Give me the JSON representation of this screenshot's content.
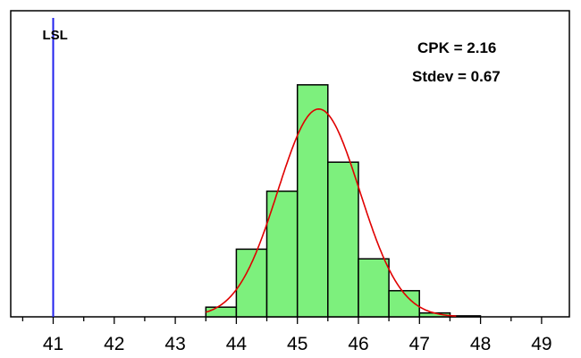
{
  "chart_data": {
    "type": "bar",
    "subtype": "histogram",
    "title": "",
    "xlabel": "",
    "ylabel": "",
    "xlim": [
      40.3,
      49.6
    ],
    "ylim": [
      0,
      30
    ],
    "x_ticks": [
      41,
      42,
      43,
      44,
      45,
      46,
      47,
      48,
      49
    ],
    "y_ticks_shown": false,
    "grid": false,
    "bin_width": 0.5,
    "bins": [
      {
        "start": 43.5,
        "end": 44.0,
        "count": 1
      },
      {
        "start": 44.0,
        "end": 44.5,
        "count": 7
      },
      {
        "start": 44.5,
        "end": 45.0,
        "count": 13
      },
      {
        "start": 45.0,
        "end": 45.5,
        "count": 24
      },
      {
        "start": 45.5,
        "end": 46.0,
        "count": 16
      },
      {
        "start": 46.0,
        "end": 46.5,
        "count": 6
      },
      {
        "start": 46.5,
        "end": 47.0,
        "count": 2.7
      },
      {
        "start": 47.0,
        "end": 47.5,
        "count": 0.4
      },
      {
        "start": 47.5,
        "end": 48.0,
        "count": 0.1
      }
    ],
    "fit_curve": {
      "type": "normal",
      "mean": 45.35,
      "stdev": 0.67,
      "peak": 21.5,
      "color": "#e00000"
    },
    "spec_limit": {
      "label": "LSL",
      "value": 41,
      "color": "#2222ee"
    },
    "annotations": [
      "CPK = 2.16",
      "Stdev = 0.67"
    ],
    "colors": {
      "bar_fill": "#7df07d",
      "bar_stroke": "#000000",
      "axis": "#000000"
    }
  }
}
